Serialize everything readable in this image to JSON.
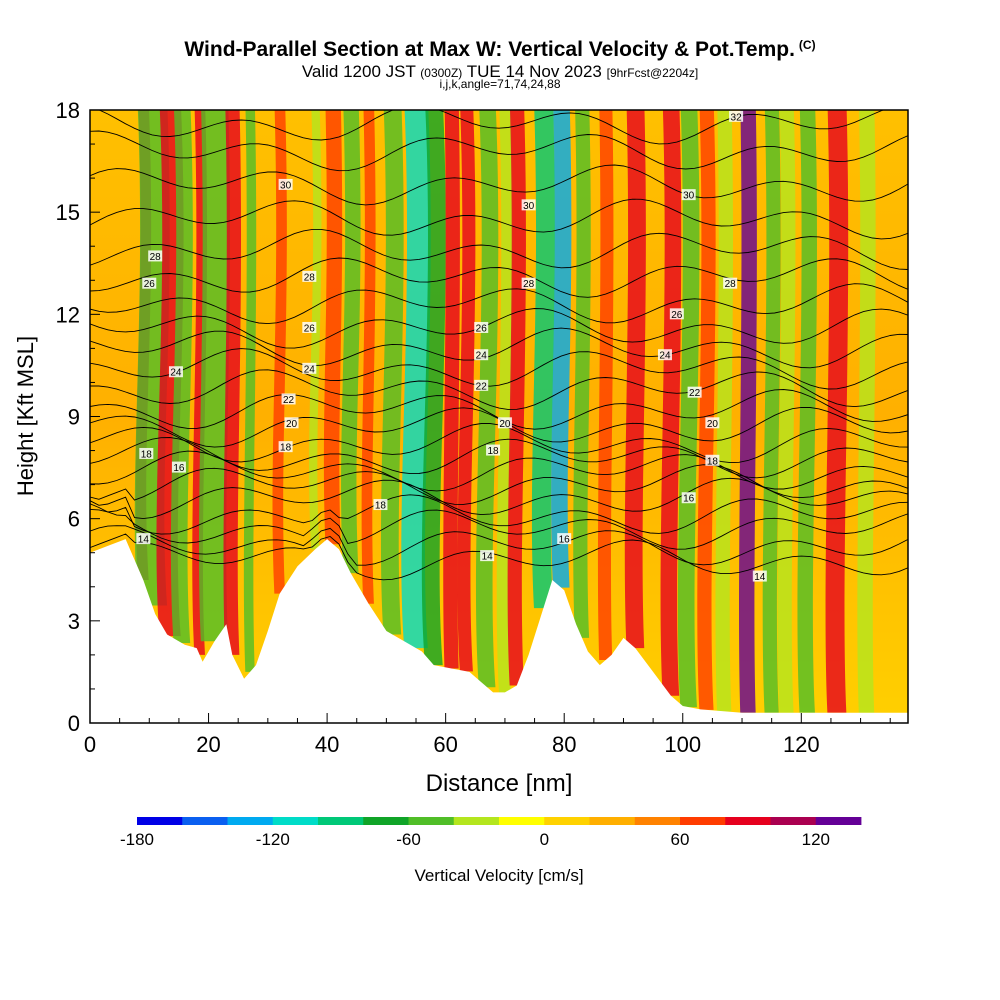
{
  "header": {
    "title": "Wind-Parallel Section at Max W: Vertical Velocity & Pot.Temp.",
    "title_mark": "(C)",
    "valid_prefix": "Valid 1200 JST",
    "valid_utc": "(0300Z)",
    "valid_date": "TUE 14 Nov 2023",
    "valid_fcst": "[9hrFcst@2204z]",
    "section_info": "i,j,k,angle=71,74,24,88"
  },
  "chart_data": {
    "type": "heatmap",
    "xlabel": "Distance [nm]",
    "ylabel": "Height [Kft MSL]",
    "xlim": [
      0,
      138
    ],
    "ylim": [
      0,
      18
    ],
    "x_ticks": [
      0,
      20,
      40,
      60,
      80,
      100,
      120
    ],
    "y_ticks": [
      0,
      3,
      6,
      9,
      12,
      15,
      18
    ],
    "colorbar": {
      "label": "Vertical Velocity [cm/s]",
      "min": -180,
      "max": 140,
      "step": 20,
      "tick_values": [
        -180,
        -120,
        -60,
        0,
        60,
        120
      ],
      "tick_labels": [
        "-180",
        "-120",
        "-60",
        "0",
        "60",
        "120"
      ],
      "colors": [
        "#0000e6",
        "#0a5ff0",
        "#00aaf0",
        "#00dcc8",
        "#00c878",
        "#10a428",
        "#50be28",
        "#b4e61e",
        "#ffff00",
        "#ffd200",
        "#ffaf00",
        "#ff8200",
        "#ff3c00",
        "#e6001e",
        "#aa0050",
        "#640096"
      ]
    },
    "terrain_kft": [
      [
        0,
        5.0
      ],
      [
        3,
        5.2
      ],
      [
        6,
        5.4
      ],
      [
        9,
        4.2
      ],
      [
        11,
        3.2
      ],
      [
        13,
        2.6
      ],
      [
        16,
        2.3
      ],
      [
        18,
        2.2
      ],
      [
        19,
        1.8
      ],
      [
        21,
        2.4
      ],
      [
        23,
        2.9
      ],
      [
        24,
        2.0
      ],
      [
        26,
        1.3
      ],
      [
        28,
        1.7
      ],
      [
        30,
        2.7
      ],
      [
        32,
        3.8
      ],
      [
        35,
        4.6
      ],
      [
        38,
        5.1
      ],
      [
        40,
        5.4
      ],
      [
        42,
        5.1
      ],
      [
        44,
        4.4
      ],
      [
        47,
        3.5
      ],
      [
        50,
        2.7
      ],
      [
        53,
        2.4
      ],
      [
        56,
        2.1
      ],
      [
        58,
        1.7
      ],
      [
        61,
        1.6
      ],
      [
        64,
        1.5
      ],
      [
        66,
        1.2
      ],
      [
        68,
        0.9
      ],
      [
        70,
        0.9
      ],
      [
        72,
        1.1
      ],
      [
        74,
        2.0
      ],
      [
        76,
        3.1
      ],
      [
        78,
        4.2
      ],
      [
        80,
        3.9
      ],
      [
        82,
        2.9
      ],
      [
        84,
        2.1
      ],
      [
        86,
        1.7
      ],
      [
        88,
        2.0
      ],
      [
        90,
        2.5
      ],
      [
        92,
        2.2
      ],
      [
        95,
        1.5
      ],
      [
        98,
        0.8
      ],
      [
        100,
        0.5
      ],
      [
        103,
        0.4
      ],
      [
        110,
        0.3
      ],
      [
        120,
        0.3
      ],
      [
        138,
        0.3
      ]
    ],
    "theta_levels": [
      {
        "label": "14",
        "base": 4.8
      },
      {
        "label": "",
        "base": 5.2
      },
      {
        "label": "16",
        "base": 5.7
      },
      {
        "label": "",
        "base": 6.1
      },
      {
        "label": "18",
        "base": 6.6
      },
      {
        "label": "",
        "base": 7.0
      },
      {
        "label": "",
        "base": 7.4
      },
      {
        "label": "20",
        "base": 7.8
      },
      {
        "label": "",
        "base": 8.2
      },
      {
        "label": "22",
        "base": 8.7
      },
      {
        "label": "",
        "base": 9.2
      },
      {
        "label": "24",
        "base": 9.8
      },
      {
        "label": "",
        "base": 10.4
      },
      {
        "label": "26",
        "base": 11.0
      },
      {
        "label": "",
        "base": 11.6
      },
      {
        "label": "28",
        "base": 12.3
      },
      {
        "label": "",
        "base": 13.1
      },
      {
        "label": "",
        "base": 13.9
      },
      {
        "label": "30",
        "base": 14.8
      },
      {
        "label": "",
        "base": 15.8
      },
      {
        "label": "",
        "base": 16.8
      },
      {
        "label": "32",
        "base": 17.6
      }
    ],
    "contour_labels": [
      {
        "text": "14",
        "x": 9,
        "y": 5.4
      },
      {
        "text": "18",
        "x": 9.5,
        "y": 7.9
      },
      {
        "text": "16",
        "x": 15,
        "y": 7.5
      },
      {
        "text": "24",
        "x": 14.5,
        "y": 10.3
      },
      {
        "text": "26",
        "x": 10,
        "y": 12.9
      },
      {
        "text": "28",
        "x": 11,
        "y": 13.7
      },
      {
        "text": "30",
        "x": 33,
        "y": 15.8
      },
      {
        "text": "28",
        "x": 37,
        "y": 13.1
      },
      {
        "text": "26",
        "x": 37,
        "y": 11.6
      },
      {
        "text": "24",
        "x": 37,
        "y": 10.4
      },
      {
        "text": "22",
        "x": 33.5,
        "y": 9.5
      },
      {
        "text": "20",
        "x": 34,
        "y": 8.8
      },
      {
        "text": "18",
        "x": 33,
        "y": 8.1
      },
      {
        "text": "18",
        "x": 49,
        "y": 6.4
      },
      {
        "text": "14",
        "x": 67,
        "y": 4.9
      },
      {
        "text": "26",
        "x": 66,
        "y": 11.6
      },
      {
        "text": "24",
        "x": 66,
        "y": 10.8
      },
      {
        "text": "22",
        "x": 66,
        "y": 9.9
      },
      {
        "text": "20",
        "x": 70,
        "y": 8.8
      },
      {
        "text": "18",
        "x": 68,
        "y": 8.0
      },
      {
        "text": "28",
        "x": 74,
        "y": 12.9
      },
      {
        "text": "30",
        "x": 74,
        "y": 15.2
      },
      {
        "text": "16",
        "x": 80,
        "y": 5.4
      },
      {
        "text": "30",
        "x": 101,
        "y": 15.5
      },
      {
        "text": "28",
        "x": 108,
        "y": 12.9
      },
      {
        "text": "26",
        "x": 99,
        "y": 12.0
      },
      {
        "text": "24",
        "x": 97,
        "y": 10.8
      },
      {
        "text": "22",
        "x": 102,
        "y": 9.7
      },
      {
        "text": "20",
        "x": 105,
        "y": 8.8
      },
      {
        "text": "18",
        "x": 105,
        "y": 7.7
      },
      {
        "text": "16",
        "x": 101,
        "y": 6.6
      },
      {
        "text": "14",
        "x": 113,
        "y": 4.3
      },
      {
        "text": "32",
        "x": 109,
        "y": 17.8
      }
    ]
  }
}
